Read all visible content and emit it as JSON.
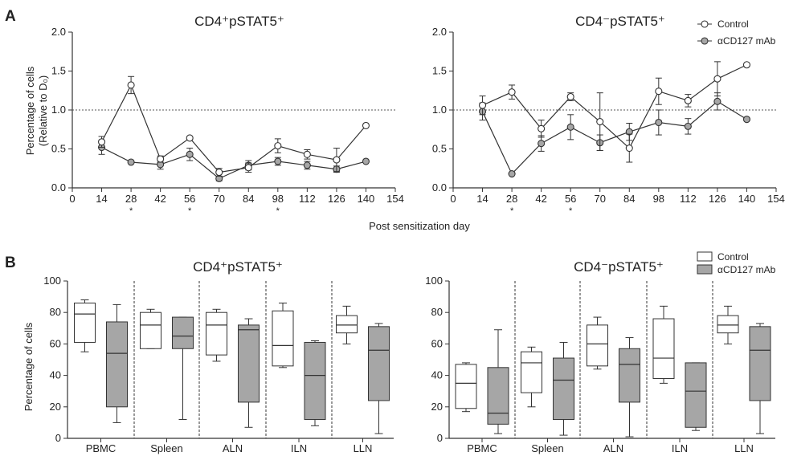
{
  "figure": {
    "panel_a_label": "A",
    "panel_b_label": "B",
    "shared_x_label": "Post sensitization day",
    "legend_a": [
      {
        "label": "Control",
        "color": "#ffffff"
      },
      {
        "label": "αCD127 mAb",
        "color": "#a6a6a6"
      }
    ],
    "legend_b": [
      {
        "label": "Control",
        "color": "#ffffff"
      },
      {
        "label": "αCD127 mAb",
        "color": "#a6a6a6"
      }
    ]
  },
  "chart_data": [
    {
      "type": "line",
      "panel": "A",
      "title": "CD4⁺pSTAT5⁺",
      "ylabel_line1": "Percentage of cells",
      "ylabel_line2": "(Relative to D₀)",
      "xlabel": "Post sensitization day",
      "xlim": [
        0,
        154
      ],
      "ylim": [
        0,
        2.0
      ],
      "x_ticks": [
        0,
        14,
        28,
        42,
        56,
        70,
        84,
        98,
        112,
        126,
        140,
        154
      ],
      "y_ticks": [
        "0.0",
        "0.5",
        "1.0",
        "1.5",
        "2.0"
      ],
      "reference_line": 1.0,
      "significant_days": [
        28,
        56,
        98
      ],
      "significance_marker": "*",
      "x": [
        14,
        28,
        42,
        56,
        70,
        84,
        98,
        112,
        126,
        140
      ],
      "series": [
        {
          "name": "Control",
          "marker": "open-circle",
          "values": [
            0.59,
            1.32,
            0.37,
            0.64,
            0.2,
            0.26,
            0.54,
            0.43,
            0.36,
            0.8
          ],
          "errors": [
            0.07,
            0.11,
            0.04,
            0.02,
            0.05,
            0.06,
            0.09,
            0.06,
            0.15,
            0.0
          ]
        },
        {
          "name": "αCD127 mAb",
          "marker": "filled-circle",
          "values": [
            0.52,
            0.33,
            0.3,
            0.43,
            0.12,
            0.29,
            0.34,
            0.29,
            0.24,
            0.34
          ],
          "errors": [
            0.09,
            0.0,
            0.06,
            0.08,
            0.03,
            0.06,
            0.05,
            0.05,
            0.04,
            0.0
          ]
        }
      ]
    },
    {
      "type": "line",
      "panel": "A",
      "title": "CD4⁻pSTAT5⁺",
      "xlabel": "Post sensitization day",
      "xlim": [
        0,
        154
      ],
      "ylim": [
        0,
        2.0
      ],
      "x_ticks": [
        0,
        14,
        28,
        42,
        56,
        70,
        84,
        98,
        112,
        126,
        140,
        154
      ],
      "y_ticks": [
        "0.0",
        "0.5",
        "1.0",
        "1.5",
        "2.0"
      ],
      "reference_line": 1.0,
      "significant_days": [
        28,
        56
      ],
      "significance_marker": "*",
      "x": [
        14,
        28,
        42,
        56,
        70,
        84,
        98,
        112,
        126,
        140
      ],
      "series": [
        {
          "name": "Control",
          "marker": "open-circle",
          "values": [
            1.06,
            1.23,
            0.76,
            1.17,
            0.85,
            0.51,
            1.24,
            1.12,
            1.4,
            1.58
          ],
          "errors": [
            0.12,
            0.09,
            0.11,
            0.05,
            0.37,
            0.18,
            0.17,
            0.08,
            0.22,
            0.0
          ]
        },
        {
          "name": "αCD127 mAb",
          "marker": "filled-circle",
          "values": [
            0.98,
            0.18,
            0.57,
            0.78,
            0.58,
            0.72,
            0.84,
            0.79,
            1.11,
            0.88
          ],
          "errors": [
            0.11,
            0.0,
            0.1,
            0.16,
            0.1,
            0.11,
            0.16,
            0.1,
            0.11,
            0.0
          ]
        }
      ]
    },
    {
      "type": "box",
      "panel": "B",
      "title": "CD4⁺pSTAT5⁺",
      "ylabel": "Percentage of cells",
      "ylim": [
        0,
        100
      ],
      "y_ticks": [
        "0",
        "20",
        "40",
        "60",
        "80",
        "100"
      ],
      "categories": [
        "PBMC",
        "Spleen",
        "ALN",
        "ILN",
        "LLN"
      ],
      "series": [
        {
          "name": "Control",
          "boxes": [
            {
              "min": 55,
              "q1": 61,
              "median": 79,
              "q3": 86,
              "max": 88
            },
            {
              "min": 57,
              "q1": 57,
              "median": 72,
              "q3": 80,
              "max": 82
            },
            {
              "min": 49,
              "q1": 53,
              "median": 72,
              "q3": 80,
              "max": 82
            },
            {
              "min": 45,
              "q1": 46,
              "median": 59,
              "q3": 81,
              "max": 86
            },
            {
              "min": 60,
              "q1": 67,
              "median": 72,
              "q3": 78,
              "max": 84
            }
          ]
        },
        {
          "name": "αCD127 mAb",
          "boxes": [
            {
              "min": 10,
              "q1": 20,
              "median": 54,
              "q3": 74,
              "max": 85
            },
            {
              "min": 12,
              "q1": 57,
              "median": 65,
              "q3": 77,
              "max": 77
            },
            {
              "min": 7,
              "q1": 23,
              "median": 69,
              "q3": 72,
              "max": 76
            },
            {
              "min": 8,
              "q1": 12,
              "median": 40,
              "q3": 61,
              "max": 62
            },
            {
              "min": 3,
              "q1": 24,
              "median": 56,
              "q3": 71,
              "max": 73
            }
          ]
        }
      ]
    },
    {
      "type": "box",
      "panel": "B",
      "title": "CD4⁻pSTAT5⁺",
      "ylim": [
        0,
        100
      ],
      "y_ticks": [
        "0",
        "20",
        "40",
        "60",
        "80",
        "100"
      ],
      "categories": [
        "PBMC",
        "Spleen",
        "ALN",
        "ILN",
        "LLN"
      ],
      "series": [
        {
          "name": "Control",
          "boxes": [
            {
              "min": 17,
              "q1": 19,
              "median": 35,
              "q3": 47,
              "max": 48
            },
            {
              "min": 20,
              "q1": 29,
              "median": 48,
              "q3": 55,
              "max": 58
            },
            {
              "min": 44,
              "q1": 46,
              "median": 60,
              "q3": 72,
              "max": 77
            },
            {
              "min": 35,
              "q1": 38,
              "median": 51,
              "q3": 76,
              "max": 84
            },
            {
              "min": 60,
              "q1": 67,
              "median": 72,
              "q3": 78,
              "max": 84
            }
          ]
        },
        {
          "name": "αCD127 mAb",
          "boxes": [
            {
              "min": 3,
              "q1": 9,
              "median": 16,
              "q3": 45,
              "max": 69
            },
            {
              "min": 2,
              "q1": 12,
              "median": 37,
              "q3": 51,
              "max": 61
            },
            {
              "min": 1,
              "q1": 23,
              "median": 47,
              "q3": 57,
              "max": 64
            },
            {
              "min": 5,
              "q1": 7,
              "median": 30,
              "q3": 48,
              "max": 48
            },
            {
              "min": 3,
              "q1": 24,
              "median": 56,
              "q3": 71,
              "max": 73
            }
          ]
        }
      ]
    }
  ]
}
